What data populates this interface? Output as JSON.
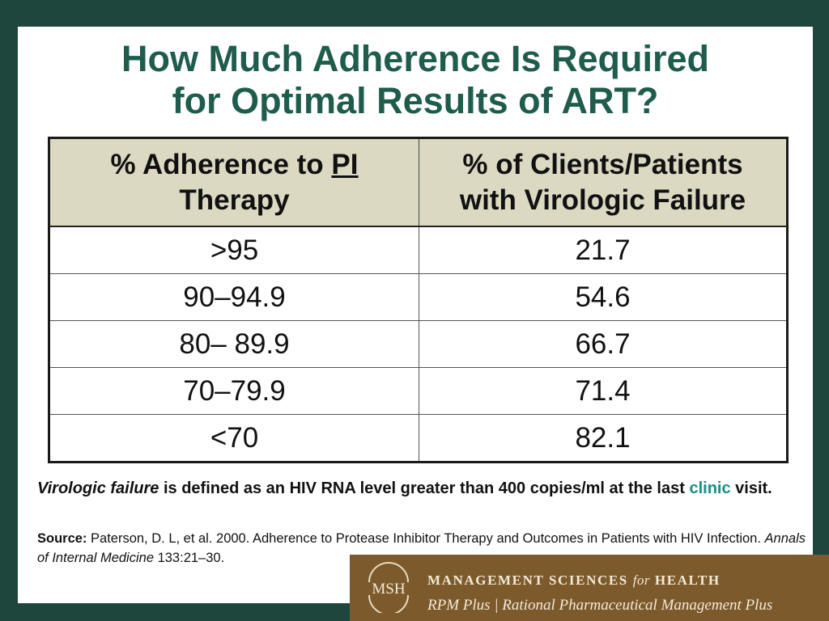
{
  "title": {
    "line1": "How Much Adherence Is Required",
    "line2": "for Optimal Results of ART?"
  },
  "table": {
    "header1_pre": "% Adherence to ",
    "header1_pi": "PI",
    "header1_post": "Therapy",
    "header2_line1": "% of Clients/Patients",
    "header2_line2": "with Virologic Failure",
    "rows": [
      {
        "adherence": ">95",
        "failure": "21.7"
      },
      {
        "adherence": "90–94.9",
        "failure": "54.6"
      },
      {
        "adherence": "80– 89.9",
        "failure": "66.7"
      },
      {
        "adherence": "70–79.9",
        "failure": "71.4"
      },
      {
        "adherence": "<70",
        "failure": "82.1"
      }
    ]
  },
  "note": {
    "term": "Virologic failure",
    "text1": " is defined as an HIV RNA level greater than 400 copies/ml at the last ",
    "clinic": "clinic",
    "text2": " visit."
  },
  "source": {
    "label": "Source:",
    "text1": " Paterson, D. L, et al. 2000. Adherence to Protease Inhibitor Therapy and Outcomes in Patients with HIV Infection. ",
    "journal": "Annals of Internal Medicine",
    "text2": " 133:21–30."
  },
  "footer": {
    "logo_text": "MSH",
    "org_main": "MANAGEMENT SCIENCES",
    "org_for": "for",
    "org_end": "HEALTH",
    "program": "RPM Plus | Rational Pharmaceutical Management Plus"
  },
  "colors": {
    "frame": "#1f463c",
    "title": "#1e5c4c",
    "header_bg": "#dcd9c2",
    "clinic_link": "#1a8c8a",
    "footer_bg": "#7c5a2c"
  }
}
